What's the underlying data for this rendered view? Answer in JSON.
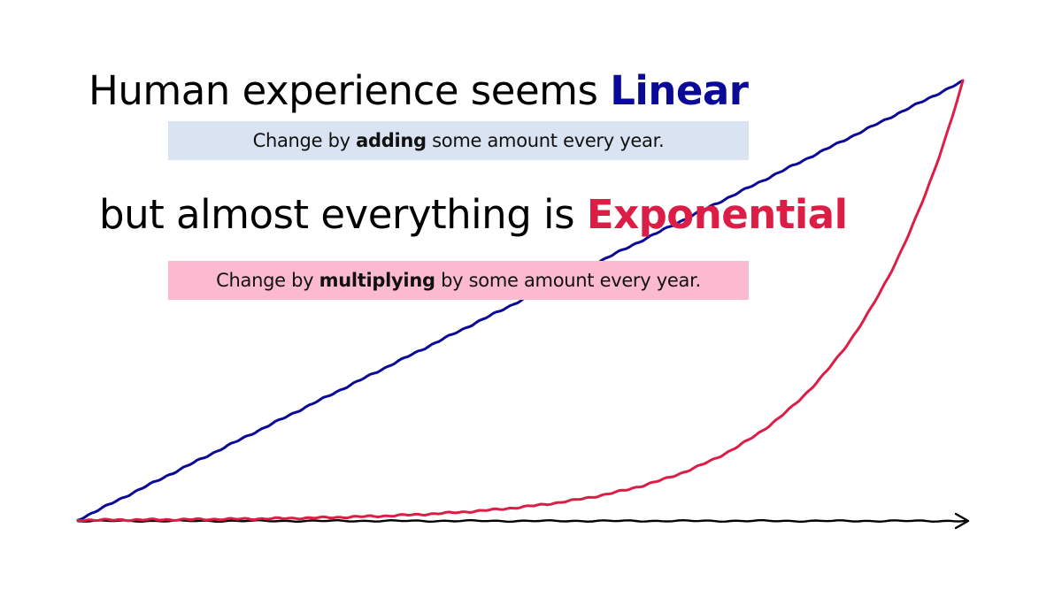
{
  "headline_linear": {
    "prefix": "Human experience seems ",
    "keyword": "Linear"
  },
  "caption_linear": {
    "prefix": "Change by ",
    "keyword": "adding",
    "suffix": " some amount every year."
  },
  "headline_exponential": {
    "prefix": "but almost everything is ",
    "keyword": "Exponential"
  },
  "caption_exponential": {
    "prefix": "Change by ",
    "keyword": "multiplying",
    "suffix": " by some amount every year."
  },
  "colors": {
    "linear": "#0a0a96",
    "exponential": "#dc1e46",
    "axis": "#000000",
    "linear_box": "#dae3f2",
    "exponential_box": "#fbbad0"
  },
  "chart_data": {
    "type": "line",
    "title": "",
    "xlabel": "",
    "ylabel": "",
    "axis_arrow": "right",
    "xlim": [
      0,
      10
    ],
    "ylim": [
      0,
      10
    ],
    "series": [
      {
        "key": "linear",
        "kind": "linear",
        "values": [
          0,
          1,
          2,
          3,
          4,
          5,
          6,
          7,
          8,
          9,
          10
        ]
      },
      {
        "key": "exponential",
        "kind": "exponential",
        "values": [
          0,
          0.004,
          0.015,
          0.04,
          0.1,
          0.24,
          0.57,
          1.34,
          2.9,
          5.7,
          10
        ]
      }
    ]
  }
}
